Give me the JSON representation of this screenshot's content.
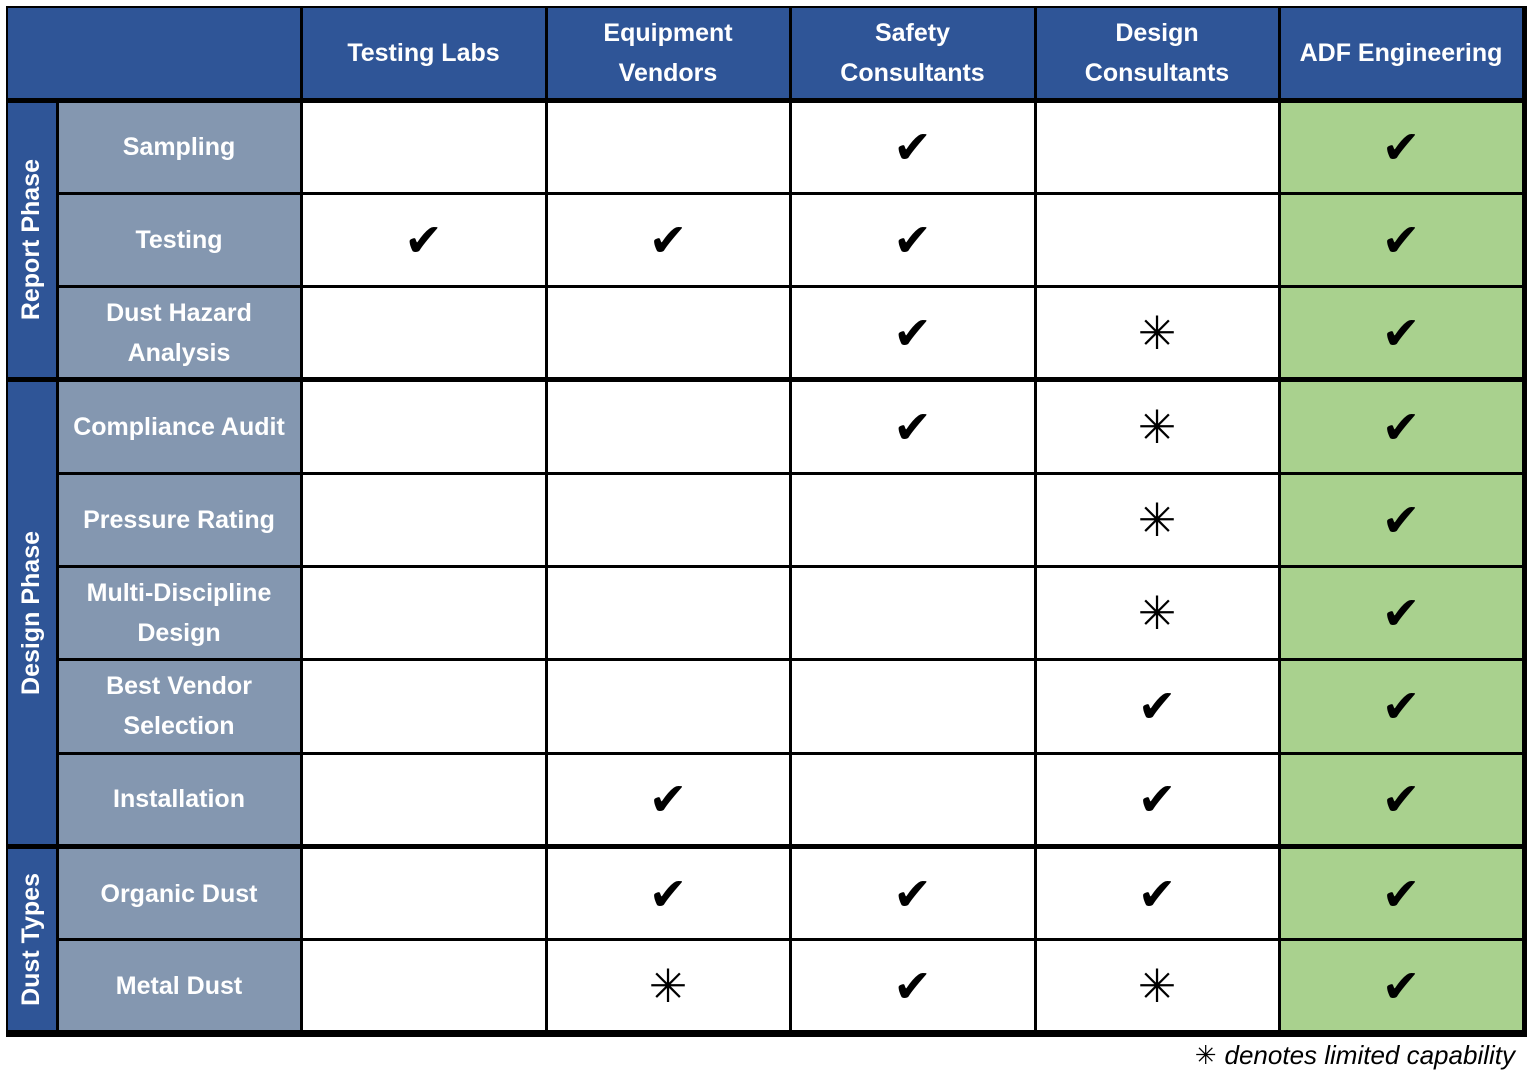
{
  "header": {
    "columns": [
      "Testing Labs",
      "Equipment\nVendors",
      "Safety\nConsultants",
      "Design\nConsultants",
      "ADF Engineering"
    ]
  },
  "groups": [
    {
      "label": "Report Phase",
      "rows": [
        {
          "label": "Sampling",
          "cells": [
            null,
            null,
            "✔",
            null,
            "✔"
          ]
        },
        {
          "label": "Testing",
          "cells": [
            "✔",
            "✔",
            "✔",
            null,
            "✔"
          ]
        },
        {
          "label": "Dust Hazard\nAnalysis",
          "cells": [
            null,
            null,
            "✔",
            "✳",
            "✔"
          ]
        }
      ]
    },
    {
      "label": "Design Phase",
      "rows": [
        {
          "label": "Compliance Audit",
          "cells": [
            null,
            null,
            "✔",
            "✳",
            "✔"
          ]
        },
        {
          "label": "Pressure Rating",
          "cells": [
            null,
            null,
            null,
            "✳",
            "✔"
          ]
        },
        {
          "label": "Multi-Discipline\nDesign",
          "cells": [
            null,
            null,
            null,
            "✳",
            "✔"
          ]
        },
        {
          "label": "Best Vendor\nSelection",
          "cells": [
            null,
            null,
            null,
            "✔",
            "✔"
          ]
        },
        {
          "label": "Installation",
          "cells": [
            null,
            "✔",
            null,
            "✔",
            "✔"
          ]
        }
      ]
    },
    {
      "label": "Dust Types",
      "rows": [
        {
          "label": "Organic Dust",
          "cells": [
            null,
            "✔",
            "✔",
            "✔",
            "✔"
          ]
        },
        {
          "label": "Metal Dust",
          "cells": [
            null,
            "✳",
            "✔",
            "✳",
            "✔"
          ]
        }
      ]
    }
  ],
  "footnote": {
    "symbol": "✳",
    "text": "denotes limited capability"
  }
}
